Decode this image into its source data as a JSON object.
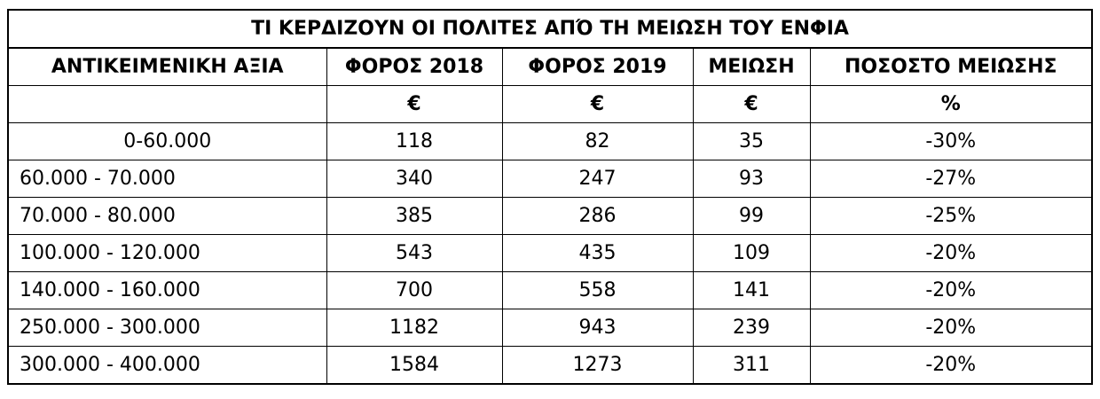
{
  "table": {
    "title": "ΤΙ ΚΕΡΔΙΖΟΥΝ ΟΙ ΠΟΛΙΤΕΣ ΑΠΌ ΤΗ ΜΕΙΩΣΗ ΤΟΥ ΕΝΦΙΑ",
    "headers": [
      "ΑΝΤΙΚΕΙΜΕΝΙΚΗ ΑΞΙΑ",
      "ΦΟΡΟΣ 2018",
      "ΦΟΡΟΣ 2019",
      "ΜΕΙΩΣΗ",
      "ΠΟΣΟΣΤΟ ΜΕΙΩΣΗΣ"
    ],
    "units": [
      null,
      "€",
      "€",
      "€",
      "%"
    ],
    "rows": [
      [
        "0-60.000",
        "118",
        "82",
        "35",
        "-30%"
      ],
      [
        "60.000 - 70.000",
        "340",
        "247",
        "93",
        "-27%"
      ],
      [
        "70.000 - 80.000",
        "385",
        "286",
        "99",
        "-25%"
      ],
      [
        "100.000 - 120.000",
        "543",
        "435",
        "109",
        "-20%"
      ],
      [
        "140.000 - 160.000",
        "700",
        "558",
        "141",
        "-20%"
      ],
      [
        "250.000 - 300.000",
        "1182",
        "943",
        "239",
        "-20%"
      ],
      [
        "300.000 - 400.000",
        "1584",
        "1273",
        "311",
        "-20%"
      ]
    ]
  }
}
